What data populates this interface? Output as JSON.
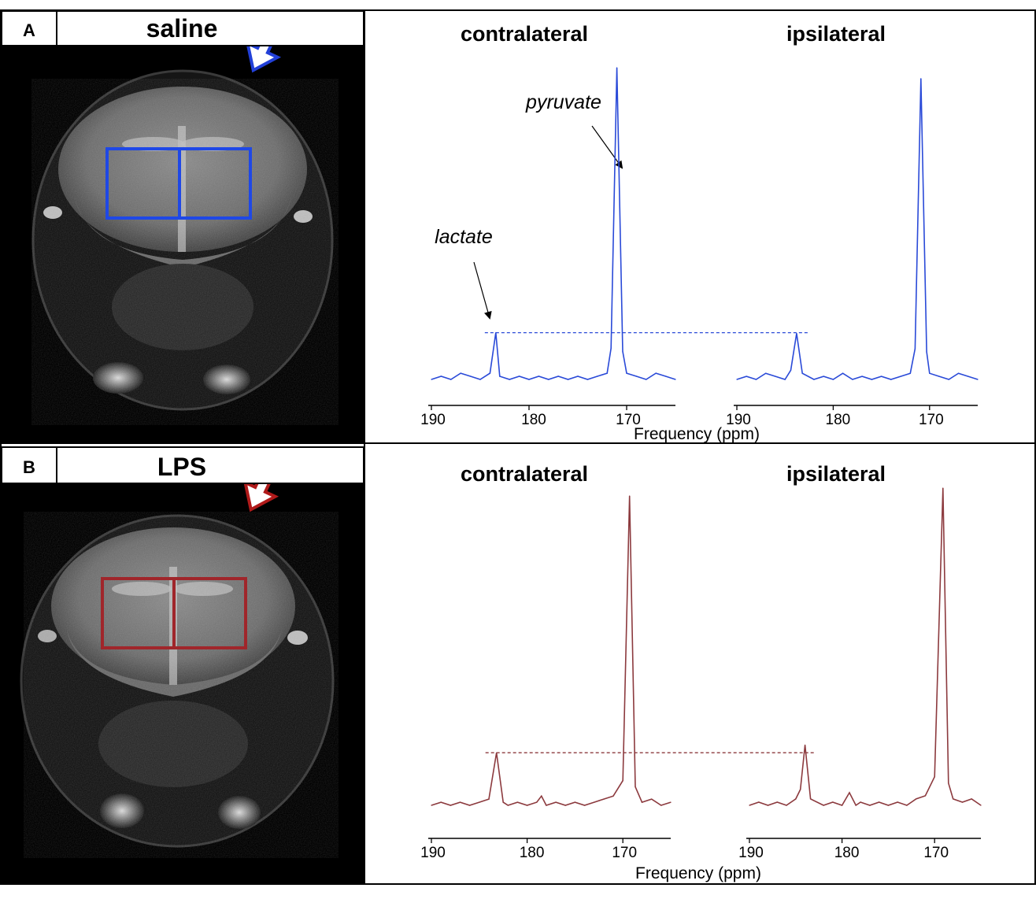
{
  "panels": [
    {
      "id": "A",
      "letter": "A",
      "condition": "saline",
      "accent": "#2a4ad8",
      "roi_color": "#1f48e6",
      "arrow_fill": "#ffffff",
      "arrow_stroke": "#2240d8",
      "region_labels": [
        "contralateral",
        "ipsilateral"
      ],
      "annotations": {
        "pyruvate": "pyruvate",
        "lactate": "lactate"
      },
      "xlabel": "Frequency (ppm)"
    },
    {
      "id": "B",
      "letter": "B",
      "condition": "LPS",
      "accent": "#8c3a3e",
      "roi_color": "#a0262b",
      "arrow_fill": "#ffffff",
      "arrow_stroke": "#b01a1a",
      "region_labels": [
        "contralateral",
        "ipsilateral"
      ],
      "annotations": {},
      "xlabel": "Frequency (ppm)"
    }
  ],
  "chart_data": [
    {
      "type": "line",
      "panel": "A",
      "title": "contralateral",
      "xlabel": "Frequency (ppm)",
      "x_reversed": true,
      "xlim": [
        190,
        165
      ],
      "xticks": [
        190,
        180,
        170
      ],
      "ylim": [
        0,
        1
      ],
      "grid": false,
      "peaks": [
        {
          "label": "lactate",
          "ppm": 183.4,
          "height": 0.15
        },
        {
          "label": "pyruvate",
          "ppm": 171.0,
          "height": 1.0
        }
      ],
      "x": [
        190,
        189,
        188,
        187,
        186,
        185,
        184,
        183.4,
        183,
        182,
        181,
        180,
        179,
        178,
        177,
        176,
        175,
        174,
        173,
        172,
        171.6,
        171,
        170.4,
        170,
        169,
        168,
        167,
        166,
        165
      ],
      "y": [
        0.0,
        0.01,
        0.0,
        0.02,
        0.01,
        0.0,
        0.02,
        0.15,
        0.01,
        0.0,
        0.01,
        0.0,
        0.01,
        0.0,
        0.01,
        0.0,
        0.01,
        0.0,
        0.01,
        0.02,
        0.1,
        1.0,
        0.09,
        0.02,
        0.01,
        0.0,
        0.02,
        0.01,
        0.0
      ]
    },
    {
      "type": "line",
      "panel": "A",
      "title": "ipsilateral",
      "xlabel": "Frequency (ppm)",
      "x_reversed": true,
      "xlim": [
        190,
        165
      ],
      "xticks": [
        190,
        180,
        170
      ],
      "ylim": [
        0,
        1
      ],
      "grid": false,
      "peaks": [
        {
          "label": "lactate",
          "ppm": 183.8,
          "height": 0.15
        },
        {
          "label": "pyruvate",
          "ppm": 170.9,
          "height": 0.98
        }
      ],
      "x": [
        190,
        189,
        188,
        187,
        186,
        185,
        184.4,
        183.8,
        183.2,
        182,
        181,
        180,
        179,
        178,
        177,
        176,
        175,
        174,
        173,
        172,
        171.5,
        170.9,
        170.3,
        170,
        169,
        168,
        167,
        166,
        165
      ],
      "y": [
        0.0,
        0.01,
        0.0,
        0.02,
        0.01,
        0.0,
        0.03,
        0.15,
        0.02,
        0.0,
        0.01,
        0.0,
        0.02,
        0.0,
        0.01,
        0.0,
        0.01,
        0.0,
        0.01,
        0.02,
        0.1,
        0.98,
        0.09,
        0.02,
        0.01,
        0.0,
        0.02,
        0.01,
        0.0
      ]
    },
    {
      "type": "line",
      "panel": "B",
      "title": "contralateral",
      "xlabel": "Frequency (ppm)",
      "x_reversed": true,
      "xlim": [
        190,
        165
      ],
      "xticks": [
        190,
        180,
        170
      ],
      "ylim": [
        0,
        1
      ],
      "grid": false,
      "peaks": [
        {
          "label": "lactate",
          "ppm": 183.2,
          "height": 0.17
        },
        {
          "label": "pyruvate",
          "ppm": 169.3,
          "height": 1.0
        }
      ],
      "x": [
        190,
        189,
        188,
        187,
        186,
        185,
        184,
        183.2,
        182.5,
        182,
        181,
        180,
        179,
        178.5,
        178,
        177,
        176,
        175,
        174,
        173,
        172,
        171,
        170,
        169.3,
        168.7,
        168,
        167,
        166,
        165
      ],
      "y": [
        0.0,
        0.01,
        0.0,
        0.01,
        0.0,
        0.01,
        0.02,
        0.17,
        0.01,
        0.0,
        0.01,
        0.0,
        0.01,
        0.03,
        0.0,
        0.01,
        0.0,
        0.01,
        0.0,
        0.01,
        0.02,
        0.03,
        0.08,
        1.0,
        0.06,
        0.01,
        0.02,
        0.0,
        0.01
      ]
    },
    {
      "type": "line",
      "panel": "B",
      "title": "ipsilateral",
      "xlabel": "Frequency (ppm)",
      "x_reversed": true,
      "xlim": [
        190,
        165
      ],
      "xticks": [
        190,
        180,
        170
      ],
      "ylim": [
        0,
        1
      ],
      "grid": false,
      "peaks": [
        {
          "label": "lactate",
          "ppm": 184.0,
          "height": 0.19
        },
        {
          "label": "pyruvate",
          "ppm": 169.1,
          "height": 1.0
        }
      ],
      "x": [
        190,
        189,
        188,
        187,
        186,
        185,
        184.5,
        184,
        183.4,
        182,
        181,
        180,
        179.2,
        178.5,
        178,
        177,
        176,
        175,
        174,
        173,
        172,
        171,
        170,
        169.1,
        168.5,
        168,
        167,
        166,
        165
      ],
      "y": [
        0.0,
        0.01,
        0.0,
        0.01,
        0.0,
        0.02,
        0.05,
        0.19,
        0.02,
        0.0,
        0.01,
        0.0,
        0.04,
        0.0,
        0.01,
        0.0,
        0.01,
        0.0,
        0.01,
        0.0,
        0.02,
        0.03,
        0.09,
        1.0,
        0.07,
        0.02,
        0.01,
        0.02,
        0.0
      ]
    }
  ]
}
